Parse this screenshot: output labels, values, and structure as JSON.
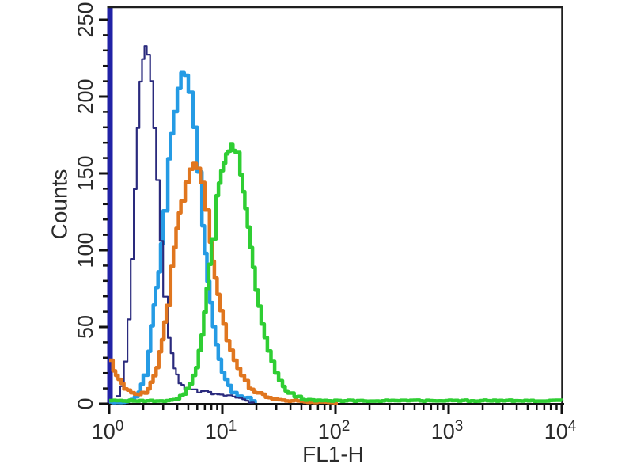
{
  "figure": {
    "background": "#ffffff"
  },
  "chart_data": {
    "type": "line",
    "subtype": "flow-cytometry-overlay-histogram",
    "title": "",
    "xlabel": "FL1-H",
    "ylabel": "Counts",
    "x_scale": "log",
    "xlim": [
      1,
      10000
    ],
    "ylim": [
      0,
      259
    ],
    "x_ticks": [
      "10^0",
      "10^1",
      "10^2",
      "10^3",
      "10^4"
    ],
    "x_minor_mantissas": [
      2,
      3,
      4,
      5,
      6,
      7,
      8,
      9
    ],
    "y_ticks": [
      0,
      50,
      100,
      150,
      200,
      250
    ],
    "y_minor_step": 10,
    "grid": false,
    "legend": "none",
    "frame_color": "#1f1f1f",
    "tick_color": "#111111",
    "text_color": "#2b2b2b",
    "left_spine_color": "#2122A6",
    "draw_order": [
      "light-blue-histogram",
      "navy-thin-histogram",
      "orange-histogram",
      "green-histogram"
    ],
    "series": [
      {
        "name": "navy-thin-histogram",
        "color": "#2A2A7D",
        "stroke_width": 2.2,
        "peak": {
          "x": 2.1,
          "counts": 232
        },
        "points": [
          [
            1.15,
            5
          ],
          [
            1.25,
            12
          ],
          [
            1.35,
            28
          ],
          [
            1.45,
            55
          ],
          [
            1.55,
            95
          ],
          [
            1.65,
            140
          ],
          [
            1.75,
            180
          ],
          [
            1.85,
            210
          ],
          [
            1.95,
            225
          ],
          [
            2.05,
            232
          ],
          [
            2.15,
            228
          ],
          [
            2.3,
            210
          ],
          [
            2.45,
            180
          ],
          [
            2.6,
            145
          ],
          [
            2.8,
            105
          ],
          [
            3.0,
            70
          ],
          [
            3.3,
            42
          ],
          [
            3.7,
            24
          ],
          [
            4.1,
            14
          ],
          [
            4.6,
            10
          ],
          [
            5.2,
            9
          ],
          [
            6.0,
            8
          ],
          [
            7.0,
            8
          ],
          [
            8.0,
            7
          ],
          [
            9.5,
            6
          ],
          [
            11,
            5
          ],
          [
            13,
            4
          ],
          [
            15,
            3
          ],
          [
            17,
            1
          ],
          [
            19,
            0
          ]
        ]
      },
      {
        "name": "light-blue-histogram",
        "color": "#259BE4",
        "stroke_width": 4.5,
        "peak": {
          "x": 4.4,
          "counts": 215
        },
        "points": [
          [
            1.0,
            1
          ],
          [
            1.3,
            1
          ],
          [
            1.55,
            3
          ],
          [
            1.8,
            8
          ],
          [
            2.0,
            18
          ],
          [
            2.2,
            35
          ],
          [
            2.45,
            65
          ],
          [
            2.7,
            85
          ],
          [
            3.0,
            125
          ],
          [
            3.3,
            160
          ],
          [
            3.7,
            190
          ],
          [
            4.0,
            206
          ],
          [
            4.3,
            215
          ],
          [
            4.6,
            214
          ],
          [
            5.0,
            203
          ],
          [
            5.5,
            180
          ],
          [
            6.0,
            150
          ],
          [
            6.6,
            115
          ],
          [
            7.3,
            80
          ],
          [
            8.2,
            50
          ],
          [
            9.2,
            28
          ],
          [
            10.5,
            15
          ],
          [
            12,
            8
          ],
          [
            13.5,
            5
          ],
          [
            15,
            4
          ],
          [
            16.5,
            4
          ],
          [
            18,
            2
          ],
          [
            19.5,
            0
          ]
        ]
      },
      {
        "name": "orange-histogram",
        "color": "#E0761F",
        "stroke_width": 4.5,
        "peak": {
          "x": 5.5,
          "counts": 156
        },
        "points": [
          [
            1.0,
            28
          ],
          [
            1.08,
            22
          ],
          [
            1.2,
            15
          ],
          [
            1.35,
            10
          ],
          [
            1.55,
            7
          ],
          [
            1.8,
            6
          ],
          [
            2.05,
            8
          ],
          [
            2.3,
            13
          ],
          [
            2.6,
            24
          ],
          [
            2.9,
            42
          ],
          [
            3.2,
            65
          ],
          [
            3.5,
            90
          ],
          [
            3.9,
            115
          ],
          [
            4.3,
            133
          ],
          [
            4.7,
            145
          ],
          [
            5.1,
            153
          ],
          [
            5.5,
            156
          ],
          [
            5.9,
            153
          ],
          [
            6.4,
            144
          ],
          [
            7.0,
            127
          ],
          [
            7.7,
            105
          ],
          [
            8.5,
            82
          ],
          [
            9.5,
            60
          ],
          [
            10.8,
            42
          ],
          [
            12.5,
            28
          ],
          [
            14.5,
            18
          ],
          [
            17,
            11
          ],
          [
            20,
            7
          ],
          [
            24,
            5
          ],
          [
            29,
            3
          ],
          [
            36,
            2
          ],
          [
            46,
            2
          ],
          [
            60,
            1
          ],
          [
            80,
            1
          ],
          [
            105,
            0
          ]
        ]
      },
      {
        "name": "green-histogram",
        "color": "#2FCE33",
        "stroke_width": 4.5,
        "peak": {
          "x": 12,
          "counts": 168
        },
        "points": [
          [
            1.0,
            2
          ],
          [
            1.5,
            2
          ],
          [
            2.0,
            2
          ],
          [
            2.6,
            2
          ],
          [
            3.2,
            2
          ],
          [
            3.9,
            3
          ],
          [
            4.5,
            6
          ],
          [
            5.1,
            12
          ],
          [
            5.8,
            24
          ],
          [
            6.5,
            45
          ],
          [
            7.2,
            75
          ],
          [
            8.0,
            108
          ],
          [
            8.8,
            135
          ],
          [
            9.7,
            152
          ],
          [
            10.7,
            162
          ],
          [
            11.8,
            168
          ],
          [
            13.0,
            163
          ],
          [
            14.3,
            150
          ],
          [
            15.8,
            128
          ],
          [
            17.5,
            102
          ],
          [
            19.5,
            75
          ],
          [
            22,
            52
          ],
          [
            25,
            34
          ],
          [
            29,
            20
          ],
          [
            34,
            11
          ],
          [
            40,
            6
          ],
          [
            50,
            3
          ],
          [
            65,
            2
          ],
          [
            85,
            2
          ],
          [
            120,
            2
          ],
          [
            200,
            2
          ],
          [
            400,
            2
          ],
          [
            1000,
            2
          ],
          [
            3000,
            2
          ],
          [
            10000,
            2
          ]
        ]
      }
    ]
  }
}
